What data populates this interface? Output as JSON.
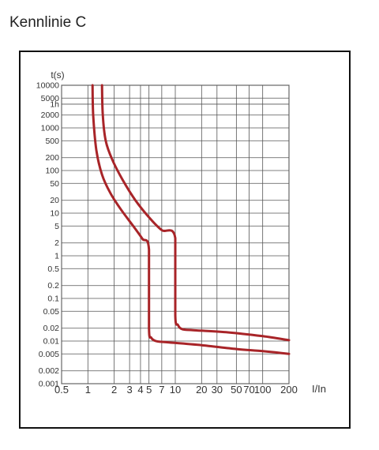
{
  "page_title": "Kennlinie C",
  "chart_data": {
    "type": "line",
    "title": "Kennlinie C",
    "xlabel": "I/In",
    "ylabel": "t(s)",
    "x_scale": "log",
    "y_scale": "log",
    "xlim": [
      0.5,
      200
    ],
    "ylim": [
      0.001,
      10000
    ],
    "grid": true,
    "x_ticks": [
      {
        "v": 0.5,
        "label": "0.5"
      },
      {
        "v": 1,
        "label": "1"
      },
      {
        "v": 2,
        "label": "2"
      },
      {
        "v": 3,
        "label": "3"
      },
      {
        "v": 4,
        "label": "4"
      },
      {
        "v": 5,
        "label": "5"
      },
      {
        "v": 7,
        "label": "7"
      },
      {
        "v": 10,
        "label": "10"
      },
      {
        "v": 20,
        "label": "20"
      },
      {
        "v": 30,
        "label": "30"
      },
      {
        "v": 50,
        "label": "50"
      },
      {
        "v": 70,
        "label": "70"
      },
      {
        "v": 100,
        "label": "100"
      },
      {
        "v": 200,
        "label": "200"
      }
    ],
    "y_ticks": [
      {
        "v": 10000,
        "label": "10000"
      },
      {
        "v": 5000,
        "label": "5000"
      },
      {
        "v": 3600,
        "label": "1h"
      },
      {
        "v": 2000,
        "label": "2000"
      },
      {
        "v": 1000,
        "label": "1000"
      },
      {
        "v": 500,
        "label": "500"
      },
      {
        "v": 200,
        "label": "200"
      },
      {
        "v": 100,
        "label": "100"
      },
      {
        "v": 50,
        "label": "50"
      },
      {
        "v": 20,
        "label": "20"
      },
      {
        "v": 10,
        "label": "10"
      },
      {
        "v": 5,
        "label": "5"
      },
      {
        "v": 2,
        "label": "2"
      },
      {
        "v": 1,
        "label": "1"
      },
      {
        "v": 0.5,
        "label": "0.5"
      },
      {
        "v": 0.2,
        "label": "0.2"
      },
      {
        "v": 0.1,
        "label": "0.1"
      },
      {
        "v": 0.05,
        "label": "0.05"
      },
      {
        "v": 0.02,
        "label": "0.02"
      },
      {
        "v": 0.01,
        "label": "0.01"
      },
      {
        "v": 0.005,
        "label": "0.005"
      },
      {
        "v": 0.002,
        "label": "0.002"
      },
      {
        "v": 0.001,
        "label": "0.001"
      }
    ],
    "series": [
      {
        "color": "#a82428",
        "points": [
          [
            1.13,
            10000
          ],
          [
            1.15,
            2000
          ],
          [
            1.25,
            300
          ],
          [
            1.45,
            80
          ],
          [
            1.8,
            30
          ],
          [
            2.4,
            12
          ],
          [
            3.3,
            5
          ],
          [
            4.2,
            2.5
          ],
          [
            5,
            1.4
          ],
          [
            5,
            0.02
          ],
          [
            5.3,
            0.012
          ],
          [
            6,
            0.01
          ],
          [
            7.5,
            0.0095
          ],
          [
            20,
            0.008
          ],
          [
            50,
            0.0065
          ],
          [
            100,
            0.0058
          ],
          [
            200,
            0.005
          ]
        ]
      },
      {
        "color": "#a82428",
        "points": [
          [
            1.45,
            10000
          ],
          [
            1.48,
            2000
          ],
          [
            1.6,
            500
          ],
          [
            1.9,
            180
          ],
          [
            2.5,
            60
          ],
          [
            3.5,
            20
          ],
          [
            5,
            8
          ],
          [
            7,
            4
          ],
          [
            10,
            2.6
          ],
          [
            10,
            0.04
          ],
          [
            10.7,
            0.024
          ],
          [
            12,
            0.019
          ],
          [
            16,
            0.018
          ],
          [
            40,
            0.016
          ],
          [
            100,
            0.013
          ],
          [
            200,
            0.0105
          ]
        ]
      }
    ]
  }
}
